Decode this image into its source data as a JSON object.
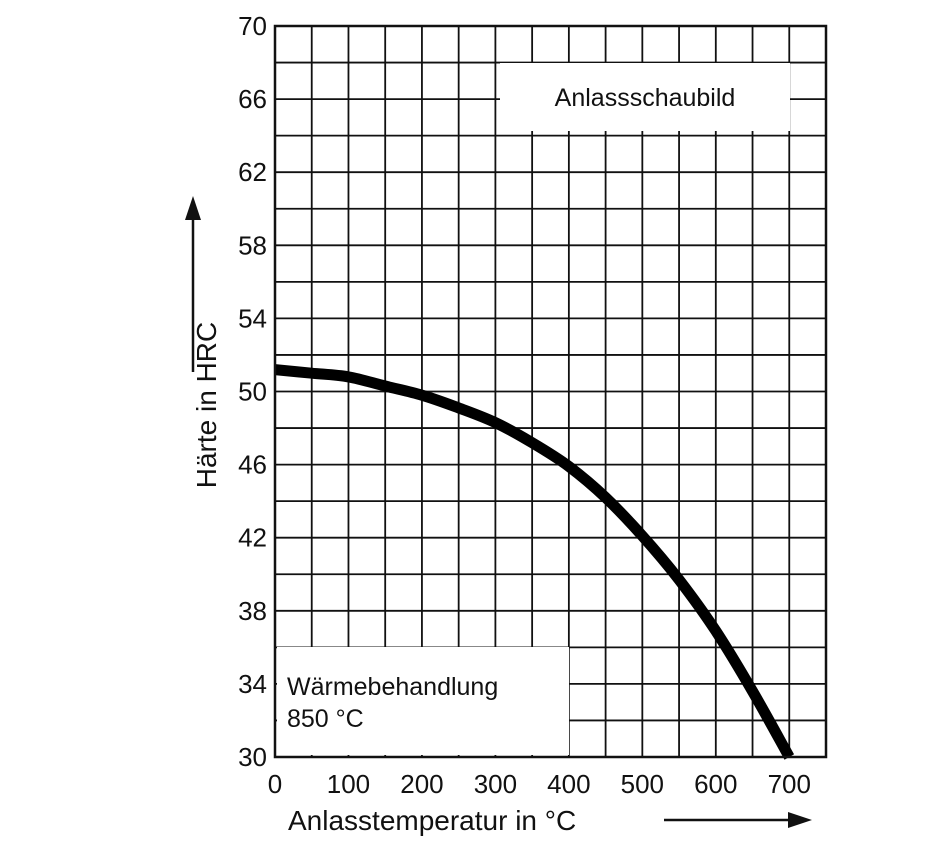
{
  "chart_data": {
    "type": "line",
    "title": "Anlassschaubild",
    "xlabel": "Anlasstemperatur in °C",
    "ylabel": "Härte in HRC",
    "xlim": [
      0,
      750
    ],
    "ylim": [
      30,
      70
    ],
    "x_ticks": [
      "0",
      "100",
      "200",
      "300",
      "400",
      "500",
      "600",
      "700"
    ],
    "y_ticks": [
      "70",
      "66",
      "62",
      "58",
      "54",
      "50",
      "46",
      "42",
      "38",
      "34",
      "30"
    ],
    "grid": true,
    "annotation": {
      "line1": "Wärmebehandlung",
      "line2": "850 °C"
    },
    "series": [
      {
        "x": [
          0,
          50,
          100,
          150,
          200,
          250,
          300,
          350,
          400,
          450,
          500,
          550,
          600,
          650,
          700
        ],
        "y": [
          51.2,
          51.0,
          50.8,
          50.3,
          49.8,
          49.1,
          48.3,
          47.2,
          45.9,
          44.2,
          42.1,
          39.7,
          36.9,
          33.6,
          30.0
        ]
      }
    ],
    "colors": {
      "curve": "#000000",
      "grid": "#111111"
    }
  }
}
